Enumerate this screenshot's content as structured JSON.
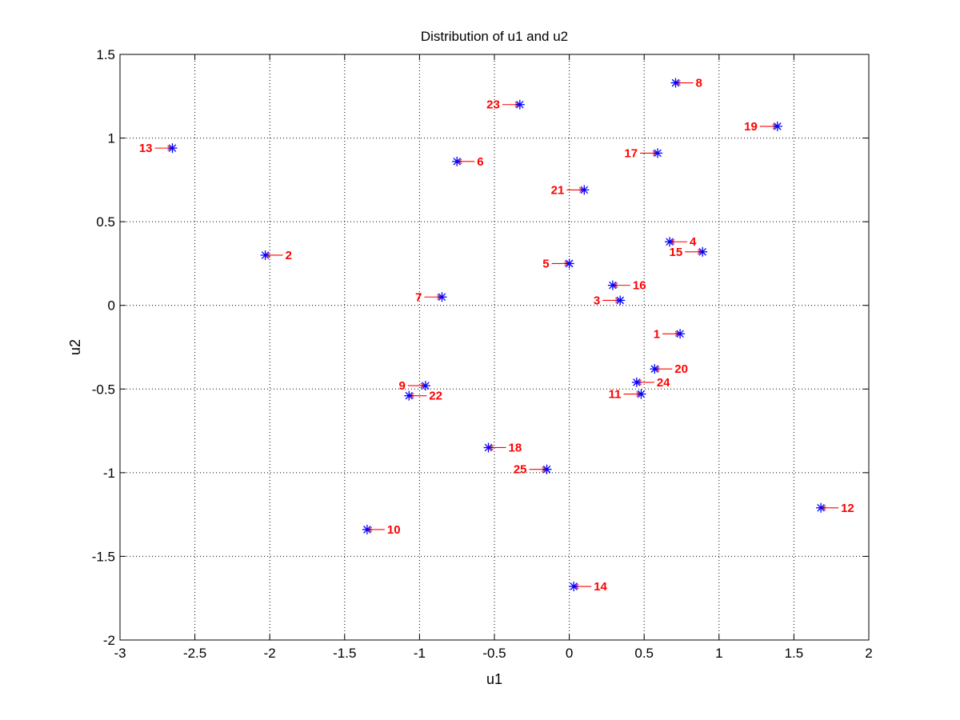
{
  "chart_data": {
    "type": "scatter",
    "title": "Distribution of u1 and u2",
    "xlabel": "u1",
    "ylabel": "u2",
    "xlim": [
      -3,
      2
    ],
    "ylim": [
      -2,
      1.5
    ],
    "xticks": [
      -3,
      -2.5,
      -2,
      -1.5,
      -1,
      -0.5,
      0,
      0.5,
      1,
      1.5,
      2
    ],
    "yticks": [
      -2,
      -1.5,
      -1,
      -0.5,
      0,
      0.5,
      1,
      1.5
    ],
    "xtick_labels": [
      "-3",
      "-2.5",
      "-2",
      "-1.5",
      "-1",
      "-0.5",
      "0",
      "0.5",
      "1",
      "1.5",
      "2"
    ],
    "ytick_labels": [
      "-2",
      "-1.5",
      "-1",
      "-0.5",
      "0",
      "0.5",
      "1",
      "1.5"
    ],
    "grid": true,
    "marker": "asterisk",
    "marker_color": "#0000ff",
    "label_color": "#ff0000",
    "points": [
      {
        "label": "1",
        "x": 0.74,
        "y": -0.17,
        "side": "left"
      },
      {
        "label": "2",
        "x": -2.03,
        "y": 0.3,
        "side": "right"
      },
      {
        "label": "3",
        "x": 0.34,
        "y": 0.03,
        "side": "left"
      },
      {
        "label": "4",
        "x": 0.67,
        "y": 0.38,
        "side": "right"
      },
      {
        "label": "5",
        "x": 0.0,
        "y": 0.25,
        "side": "left"
      },
      {
        "label": "6",
        "x": -0.75,
        "y": 0.86,
        "side": "right"
      },
      {
        "label": "7",
        "x": -0.85,
        "y": 0.05,
        "side": "left"
      },
      {
        "label": "8",
        "x": 0.71,
        "y": 1.33,
        "side": "right"
      },
      {
        "label": "9",
        "x": -0.96,
        "y": -0.48,
        "side": "left"
      },
      {
        "label": "10",
        "x": -1.35,
        "y": -1.34,
        "side": "right"
      },
      {
        "label": "11",
        "x": 0.48,
        "y": -0.53,
        "side": "left"
      },
      {
        "label": "12",
        "x": 1.68,
        "y": -1.21,
        "side": "right"
      },
      {
        "label": "13",
        "x": -2.65,
        "y": 0.94,
        "side": "left"
      },
      {
        "label": "14",
        "x": 0.03,
        "y": -1.68,
        "side": "right"
      },
      {
        "label": "15",
        "x": 0.89,
        "y": 0.32,
        "side": "left"
      },
      {
        "label": "16",
        "x": 0.29,
        "y": 0.12,
        "side": "right"
      },
      {
        "label": "17",
        "x": 0.59,
        "y": 0.91,
        "side": "left"
      },
      {
        "label": "18",
        "x": -0.54,
        "y": -0.85,
        "side": "right"
      },
      {
        "label": "19",
        "x": 1.39,
        "y": 1.07,
        "side": "left"
      },
      {
        "label": "20",
        "x": 0.57,
        "y": -0.38,
        "side": "right"
      },
      {
        "label": "21",
        "x": 0.1,
        "y": 0.69,
        "side": "left"
      },
      {
        "label": "22",
        "x": -1.07,
        "y": -0.54,
        "side": "right"
      },
      {
        "label": "23",
        "x": -0.33,
        "y": 1.2,
        "side": "left"
      },
      {
        "label": "24",
        "x": 0.45,
        "y": -0.46,
        "side": "right"
      },
      {
        "label": "25",
        "x": -0.15,
        "y": -0.98,
        "side": "left"
      }
    ]
  }
}
